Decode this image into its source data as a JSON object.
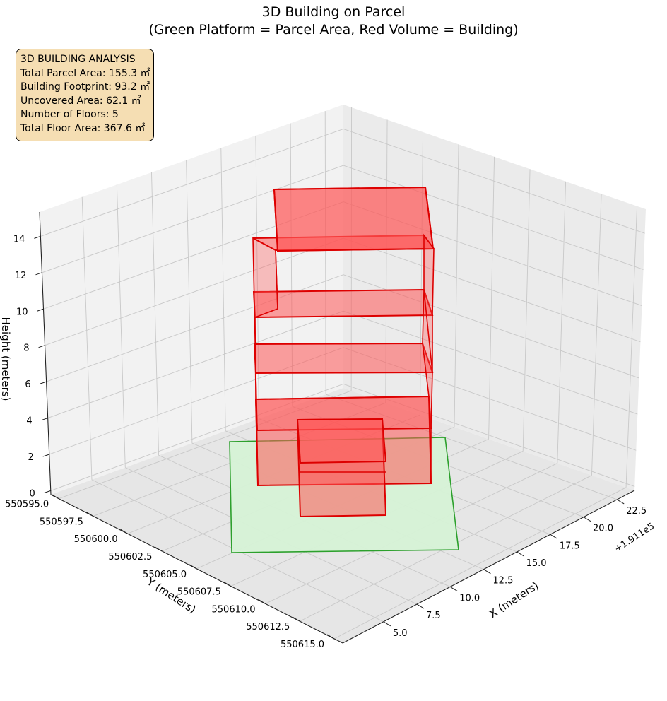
{
  "chart_data": {
    "type": "3d-box",
    "title": "3D Building on Parcel",
    "subtitle": "(Green Platform = Parcel Area, Red Volume = Building)",
    "axes": {
      "x": {
        "label": "X (meters)",
        "offset_text": "+1.911e5",
        "ticks": [
          "5.0",
          "7.5",
          "10.0",
          "12.5",
          "15.0",
          "17.5",
          "20.0",
          "22.5"
        ]
      },
      "y": {
        "label": "Y (meters)",
        "ticks": [
          "550595.0",
          "550597.5",
          "550600.0",
          "550602.5",
          "550605.0",
          "550607.5",
          "550610.0",
          "550612.5",
          "550615.0"
        ]
      },
      "z": {
        "label": "Height (meters)",
        "ticks": [
          "0",
          "2",
          "4",
          "6",
          "8",
          "10",
          "12",
          "14"
        ]
      }
    },
    "grid": true,
    "parcel": {
      "label": "Parcel Area",
      "color": "#2ca02c",
      "fill": "#d6f2d6"
    },
    "building": {
      "label": "Building",
      "color": "#dd0000",
      "fill": "#ff5555",
      "floors": 5
    },
    "info_box": {
      "lines": [
        "3D BUILDING ANALYSIS",
        "Total Parcel Area: 155.3 ㎡",
        "Building Footprint: 93.2 ㎡",
        "Uncovered Area: 62.1 ㎡",
        "Number of Floors: 5",
        "Total Floor Area: 367.6 ㎡"
      ]
    }
  }
}
